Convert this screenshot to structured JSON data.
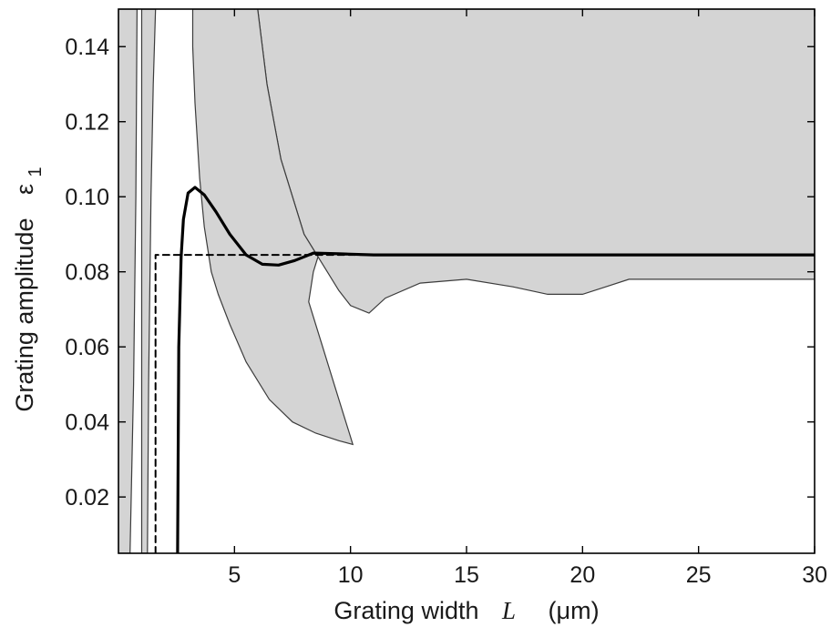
{
  "chart_data": {
    "type": "area",
    "xlabel": "Grating width",
    "xlabel_symbol": "L",
    "xlabel_unit": "(μm)",
    "ylabel": "Grating amplitude",
    "ylabel_symbol": "ε",
    "ylabel_subscript": "1",
    "xlim": [
      0,
      30
    ],
    "ylim": [
      0.005,
      0.15
    ],
    "xticks": [
      5,
      10,
      15,
      20,
      25,
      30
    ],
    "yticks": [
      0.02,
      0.04,
      0.06,
      0.08,
      0.1,
      0.12,
      0.14
    ],
    "xtick_labels": [
      "5",
      "10",
      "15",
      "20",
      "25",
      "30"
    ],
    "ytick_labels": [
      "0.02",
      "0.04",
      "0.06",
      "0.08",
      "0.10",
      "0.12",
      "0.14"
    ],
    "grid": false,
    "legend": "none",
    "colors": {
      "region_fill": "#d4d4d4",
      "region_edge": "#3c3c3c",
      "solid_curve": "#000000",
      "dashed_curve": "#000000",
      "axes": "#000000"
    },
    "series": [
      {
        "style": "solid",
        "x": [
          2.55,
          2.6,
          2.7,
          2.8,
          3.0,
          3.3,
          3.7,
          4.2,
          4.8,
          5.5,
          6.2,
          6.9,
          7.6,
          8.4,
          9.5,
          11,
          15,
          20,
          25,
          30
        ],
        "y": [
          0.005,
          0.06,
          0.084,
          0.094,
          0.101,
          0.1025,
          0.1005,
          0.096,
          0.09,
          0.0845,
          0.082,
          0.0818,
          0.083,
          0.085,
          0.0848,
          0.0845,
          0.0845,
          0.0845,
          0.0845,
          0.0845
        ]
      },
      {
        "style": "dashed",
        "x": [
          1.6,
          1.6,
          30
        ],
        "y": [
          0.005,
          0.0845,
          0.0845
        ]
      }
    ],
    "regions": [
      {
        "boundary": [
          [
            9.5,
            0.15
          ],
          [
            30,
            0.15
          ],
          [
            30,
            0.078
          ],
          [
            26,
            0.078
          ],
          [
            22,
            0.078
          ],
          [
            21,
            0.076
          ],
          [
            20,
            0.074
          ],
          [
            18.5,
            0.074
          ],
          [
            17,
            0.076
          ],
          [
            15,
            0.078
          ],
          [
            13,
            0.077
          ],
          [
            11.5,
            0.073
          ],
          [
            10.8,
            0.069
          ],
          [
            10,
            0.071
          ],
          [
            9.5,
            0.075
          ],
          [
            9.0,
            0.08
          ],
          [
            8.6,
            0.084
          ],
          [
            8.0,
            0.09
          ],
          [
            7.5,
            0.1
          ],
          [
            7.0,
            0.11
          ],
          [
            6.7,
            0.12
          ],
          [
            6.4,
            0.13
          ],
          [
            6.2,
            0.14
          ],
          [
            6.0,
            0.15
          ]
        ]
      },
      {
        "boundary": [
          [
            3.2,
            0.15
          ],
          [
            6.0,
            0.15
          ],
          [
            6.2,
            0.14
          ],
          [
            6.4,
            0.13
          ],
          [
            6.7,
            0.12
          ],
          [
            7.0,
            0.11
          ],
          [
            7.5,
            0.1
          ],
          [
            8.0,
            0.09
          ],
          [
            8.6,
            0.084
          ],
          [
            8.4,
            0.08
          ],
          [
            8.2,
            0.072
          ],
          [
            8.8,
            0.06
          ],
          [
            9.3,
            0.05
          ],
          [
            9.7,
            0.042
          ],
          [
            10.0,
            0.036
          ],
          [
            10.1,
            0.034
          ],
          [
            9.5,
            0.035
          ],
          [
            8.5,
            0.037
          ],
          [
            7.5,
            0.04
          ],
          [
            6.5,
            0.046
          ],
          [
            5.5,
            0.056
          ],
          [
            4.8,
            0.066
          ],
          [
            4.3,
            0.074
          ],
          [
            4.0,
            0.08
          ],
          [
            3.7,
            0.092
          ],
          [
            3.5,
            0.105
          ],
          [
            3.3,
            0.125
          ],
          [
            3.2,
            0.14
          ]
        ]
      },
      {
        "boundary": [
          [
            0,
            0.005
          ],
          [
            0,
            0.15
          ],
          [
            0.8,
            0.15
          ],
          [
            0.75,
            0.1
          ],
          [
            0.65,
            0.05
          ],
          [
            0.55,
            0.02
          ],
          [
            0.5,
            0.005
          ]
        ]
      },
      {
        "boundary": [
          [
            1.0,
            0.005
          ],
          [
            1.0,
            0.15
          ],
          [
            1.6,
            0.15
          ],
          [
            1.5,
            0.13
          ],
          [
            1.4,
            0.1
          ],
          [
            1.3,
            0.05
          ],
          [
            1.25,
            0.005
          ]
        ]
      }
    ]
  }
}
